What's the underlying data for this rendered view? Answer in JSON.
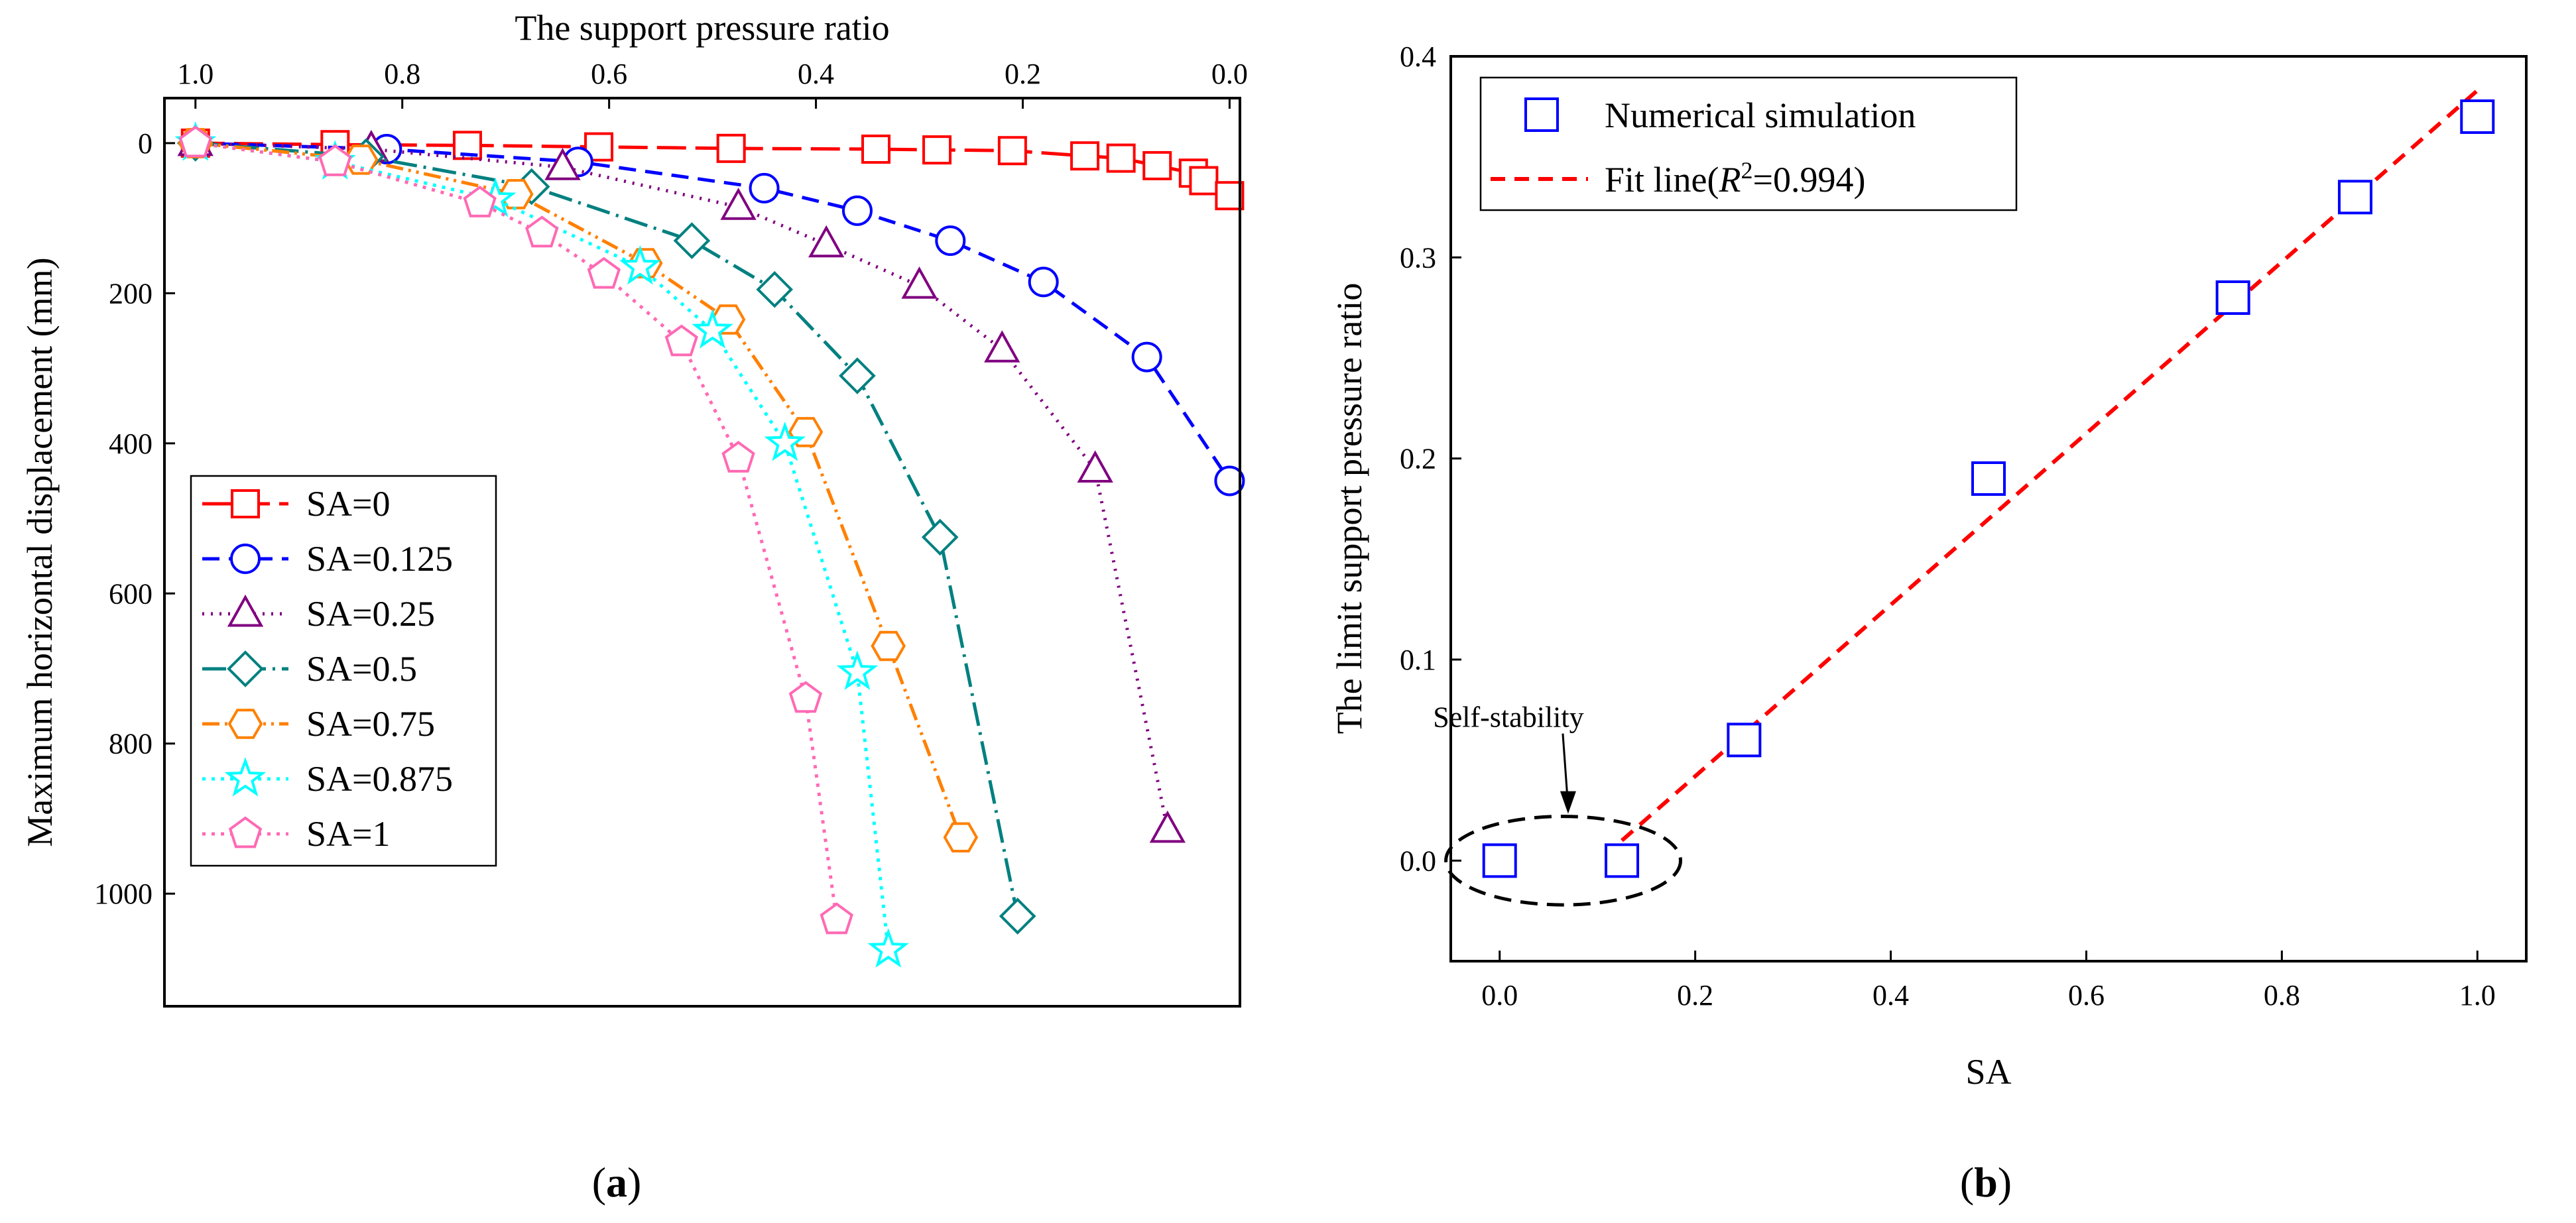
{
  "chart_data": [
    {
      "type": "line",
      "panel": "a",
      "caption": [
        "(",
        "a",
        ")"
      ],
      "xlabel": "The support pressure ratio",
      "ylabel": "Maximum horizontal displacement (mm)",
      "xlim": [
        1.03,
        -0.01
      ],
      "ylim": [
        -60,
        1150
      ],
      "x_axis_position": "top",
      "y_inverted": true,
      "xticks": [
        1.0,
        0.8,
        0.6,
        0.4,
        0.2,
        0.0
      ],
      "xtick_labels": [
        "1.0",
        "0.8",
        "0.6",
        "0.4",
        "0.2",
        "0.0"
      ],
      "yticks": [
        0,
        200,
        400,
        600,
        800,
        1000
      ],
      "ytick_labels": [
        "0",
        "200",
        "400",
        "600",
        "800",
        "1000"
      ],
      "legend_position": "bottom-left",
      "series": [
        {
          "name": "SA=0",
          "color": "#ff0000",
          "marker": "square",
          "dash": "44,14",
          "x": [
            1.0,
            0.865,
            0.737,
            0.61,
            0.482,
            0.342,
            0.283,
            0.21,
            0.14,
            0.105,
            0.07,
            0.035,
            0.025,
            0.0
          ],
          "y": [
            0,
            2,
            3,
            5,
            7,
            8,
            9,
            10,
            17,
            20,
            30,
            40,
            50,
            70
          ]
        },
        {
          "name": "SA=0.125",
          "color": "#0000ff",
          "marker": "circle",
          "dash": "26,14",
          "x": [
            1.0,
            0.815,
            0.63,
            0.45,
            0.36,
            0.27,
            0.18,
            0.08,
            0.0
          ],
          "y": [
            0,
            8,
            25,
            60,
            90,
            130,
            185,
            285,
            450
          ]
        },
        {
          "name": "SA=0.25",
          "color": "#800080",
          "marker": "triangle",
          "dash": "3,10",
          "x": [
            1.0,
            0.83,
            0.645,
            0.475,
            0.39,
            0.3,
            0.22,
            0.13,
            0.06
          ],
          "y": [
            0,
            8,
            32,
            85,
            135,
            190,
            275,
            435,
            915
          ]
        },
        {
          "name": "SA=0.5",
          "color": "#008080",
          "marker": "diamond",
          "dash": "36,10,4,10",
          "x": [
            1.0,
            0.835,
            0.675,
            0.52,
            0.44,
            0.36,
            0.28,
            0.205
          ],
          "y": [
            0,
            18,
            58,
            130,
            195,
            310,
            525,
            1030
          ]
        },
        {
          "name": "SA=0.75",
          "color": "#ff8000",
          "marker": "hexagon",
          "dash": "26,8,4,8,4,8",
          "x": [
            1.0,
            0.84,
            0.69,
            0.565,
            0.485,
            0.41,
            0.33,
            0.26
          ],
          "y": [
            0,
            22,
            68,
            160,
            235,
            385,
            670,
            925
          ]
        },
        {
          "name": "SA=0.875",
          "color": "#00ffff",
          "marker": "star",
          "dash": "5,9",
          "x": [
            1.0,
            0.865,
            0.71,
            0.57,
            0.5,
            0.43,
            0.36,
            0.33
          ],
          "y": [
            0,
            25,
            75,
            165,
            250,
            400,
            705,
            1075
          ]
        },
        {
          "name": "SA=1",
          "color": "#ff69b4",
          "marker": "pentagon",
          "dash": "5,9",
          "x": [
            1.0,
            0.865,
            0.725,
            0.665,
            0.605,
            0.53,
            0.475,
            0.41,
            0.38
          ],
          "y": [
            0,
            25,
            80,
            120,
            175,
            265,
            420,
            740,
            1035
          ]
        }
      ]
    },
    {
      "type": "scatter",
      "panel": "b",
      "caption": [
        "(",
        "b",
        ")"
      ],
      "xlabel": "SA",
      "ylabel": "The limit support pressure ratio",
      "xlim": [
        -0.05,
        1.05
      ],
      "ylim": [
        -0.05,
        0.4
      ],
      "xticks": [
        0.0,
        0.2,
        0.4,
        0.6,
        0.8,
        1.0
      ],
      "xtick_labels": [
        "0.0",
        "0.2",
        "0.4",
        "0.6",
        "0.8",
        "1.0"
      ],
      "yticks": [
        0.0,
        0.1,
        0.2,
        0.3,
        0.4
      ],
      "ytick_labels": [
        "0.0",
        "0.1",
        "0.2",
        "0.3",
        "0.4"
      ],
      "legend_position": "top-left",
      "series": [
        {
          "name": "Numerical simulation",
          "color": "#0000ff",
          "marker": "square",
          "x": [
            0.0,
            0.125,
            0.25,
            0.5,
            0.75,
            0.875,
            1.0
          ],
          "y": [
            0.0,
            0.0,
            0.06,
            0.19,
            0.28,
            0.33,
            0.37
          ]
        },
        {
          "name_parts": [
            "Fit line(",
            "R",
            "2",
            "=0.994)"
          ],
          "color": "#ff0000",
          "type": "line",
          "dash": "22,14",
          "x": [
            0.125,
            1.0
          ],
          "y": [
            0.01,
            0.383
          ]
        }
      ],
      "annotation": {
        "text": "Self-stability",
        "target_x": 0.07,
        "target_y": 0.0,
        "ellipse_center": [
          0.065,
          0.0
        ],
        "ellipse_radii": [
          0.12,
          0.022
        ]
      }
    }
  ]
}
